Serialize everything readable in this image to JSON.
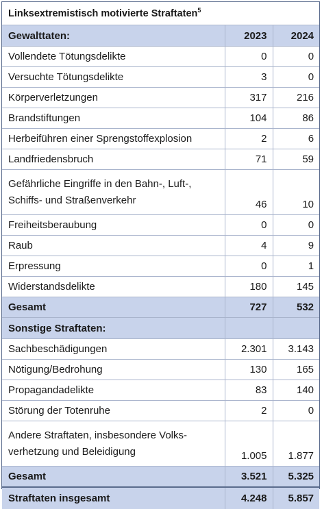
{
  "title": "Linksextremistisch motivierte Straftaten",
  "title_footnote": "5",
  "header": {
    "label": "Gewalttaten:",
    "year1": "2023",
    "year2": "2024"
  },
  "gewalt_rows": [
    {
      "label": "Vollendete Tötungsdelikte",
      "v2023": "0",
      "v2024": "0"
    },
    {
      "label": "Versuchte Tötungsdelikte",
      "v2023": "3",
      "v2024": "0"
    },
    {
      "label": "Körperverletzungen",
      "v2023": "317",
      "v2024": "216"
    },
    {
      "label": "Brandstiftungen",
      "v2023": "104",
      "v2024": "86"
    },
    {
      "label": "Herbeiführen einer Sprengstoffexplosion",
      "v2023": "2",
      "v2024": "6"
    },
    {
      "label": "Landfriedensbruch",
      "v2023": "71",
      "v2024": "59"
    },
    {
      "label_line1": "Gefährliche Eingriffe in den Bahn-, Luft-,",
      "label_line2": "Schiffs- und Straßenverkehr",
      "v2023": "46",
      "v2024": "10"
    },
    {
      "label": "Freiheitsberaubung",
      "v2023": "0",
      "v2024": "0"
    },
    {
      "label": "Raub",
      "v2023": "4",
      "v2024": "9"
    },
    {
      "label": "Erpressung",
      "v2023": "0",
      "v2024": "1"
    },
    {
      "label": "Widerstandsdelikte",
      "v2023": "180",
      "v2024": "145"
    }
  ],
  "gewalt_sum": {
    "label": "Gesamt",
    "v2023": "727",
    "v2024": "532"
  },
  "sonstige_header": {
    "label": "Sonstige Straftaten:"
  },
  "sonstige_rows": [
    {
      "label": "Sachbeschädigungen",
      "v2023": "2.301",
      "v2024": "3.143"
    },
    {
      "label": "Nötigung/Bedrohung",
      "v2023": "130",
      "v2024": "165"
    },
    {
      "label": "Propagandadelikte",
      "v2023": "83",
      "v2024": "140"
    },
    {
      "label": "Störung der Totenruhe",
      "v2023": "2",
      "v2024": "0"
    },
    {
      "label_line1": "Andere Straftaten, insbesondere Volks-",
      "label_line2": "verhetzung und Beleidigung",
      "v2023": "1.005",
      "v2024": "1.877"
    }
  ],
  "sonstige_sum": {
    "label": "Gesamt",
    "v2023": "3.521",
    "v2024": "5.325"
  },
  "grand_total": {
    "label": "Straftaten insgesamt",
    "v2023": "4.248",
    "v2024": "5.857"
  }
}
